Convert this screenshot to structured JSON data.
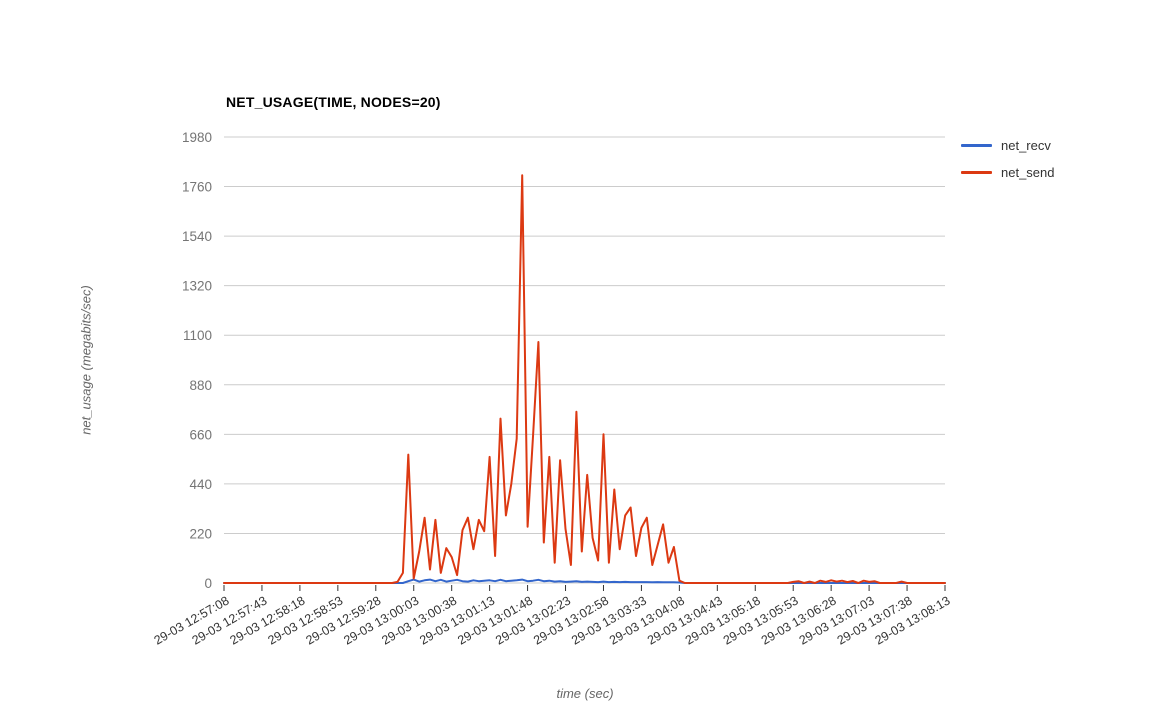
{
  "chart_data": {
    "type": "line",
    "title": "NET_USAGE(TIME, NODES=20)",
    "xlabel": "time (sec)",
    "ylabel": "net_usage (megabits/sec)",
    "legend_position": "right-top",
    "grid": "horizontal-only",
    "y_ticks": [
      0,
      220,
      440,
      660,
      880,
      1100,
      1320,
      1540,
      1760,
      1980
    ],
    "ylim": [
      0,
      1980
    ],
    "x_tick_labels": [
      "29-03 12:57:08",
      "29-03 12:57:43",
      "29-03 12:58:18",
      "29-03 12:58:53",
      "29-03 12:59:28",
      "29-03 13:00:03",
      "29-03 13:00:38",
      "29-03 13:01:13",
      "29-03 13:01:48",
      "29-03 13:02:23",
      "29-03 13:02:58",
      "29-03 13:03:33",
      "29-03 13:04:08",
      "29-03 13:04:43",
      "29-03 13:05:18",
      "29-03 13:05:53",
      "29-03 13:06:28",
      "29-03 13:07:03",
      "29-03 13:07:38",
      "29-03 13:08:13"
    ],
    "x_tick_interval_sec": 35,
    "xlim_sec": [
      0,
      665
    ],
    "sample_interval_sec": 5,
    "colors": {
      "background": "#ffffff",
      "grid": "#cccccc",
      "x_tick_mark": "#333333",
      "x_tick_text": "#333333",
      "y_tick_text": "#757575",
      "axis_title_text": "#666666",
      "title_text": "#000000"
    },
    "series": [
      {
        "name": "net_recv",
        "color": "#3366cc",
        "values": [
          0,
          0,
          0,
          0,
          0,
          0,
          0,
          0,
          0,
          0,
          0,
          0,
          0,
          0,
          0,
          0,
          0,
          0,
          0,
          0,
          0,
          0,
          0,
          0,
          0,
          0,
          0,
          0,
          0,
          0,
          0,
          0,
          0,
          0,
          8,
          15,
          6,
          12,
          15,
          8,
          14,
          6,
          10,
          14,
          8,
          6,
          12,
          8,
          10,
          12,
          8,
          14,
          8,
          10,
          12,
          15,
          8,
          10,
          14,
          8,
          10,
          6,
          8,
          5,
          6,
          8,
          5,
          6,
          5,
          4,
          6,
          4,
          5,
          4,
          5,
          4,
          4,
          4,
          4,
          3,
          4,
          3,
          3,
          3,
          2,
          0,
          0,
          0,
          0,
          0,
          0,
          0,
          0,
          0,
          0,
          0,
          0,
          0,
          0,
          0,
          0,
          0,
          0,
          0,
          0,
          0,
          0,
          0,
          0,
          0,
          0,
          0,
          0,
          0,
          0,
          0,
          0,
          0,
          0,
          0,
          0,
          0,
          0,
          0,
          0,
          0,
          0,
          0,
          0,
          0,
          0,
          0,
          0,
          0
        ]
      },
      {
        "name": "net_send",
        "color": "#dc3912",
        "values": [
          0,
          0,
          0,
          0,
          0,
          0,
          0,
          0,
          0,
          0,
          0,
          0,
          0,
          0,
          0,
          0,
          0,
          0,
          0,
          0,
          0,
          0,
          0,
          0,
          0,
          0,
          0,
          0,
          0,
          0,
          0,
          0,
          5,
          45,
          570,
          20,
          140,
          290,
          60,
          280,
          45,
          155,
          115,
          35,
          235,
          290,
          150,
          280,
          230,
          560,
          120,
          730,
          300,
          440,
          640,
          1810,
          250,
          650,
          1070,
          180,
          560,
          90,
          545,
          240,
          80,
          760,
          140,
          480,
          200,
          100,
          660,
          90,
          415,
          150,
          300,
          335,
          120,
          245,
          290,
          80,
          170,
          260,
          90,
          160,
          10,
          0,
          0,
          0,
          0,
          0,
          0,
          0,
          0,
          0,
          0,
          0,
          0,
          0,
          0,
          0,
          0,
          0,
          0,
          0,
          0,
          5,
          8,
          0,
          6,
          0,
          10,
          5,
          12,
          6,
          10,
          4,
          9,
          0,
          10,
          5,
          8,
          0,
          0,
          0,
          0,
          6,
          0,
          0,
          0,
          0,
          0,
          0,
          0,
          0
        ]
      }
    ]
  }
}
